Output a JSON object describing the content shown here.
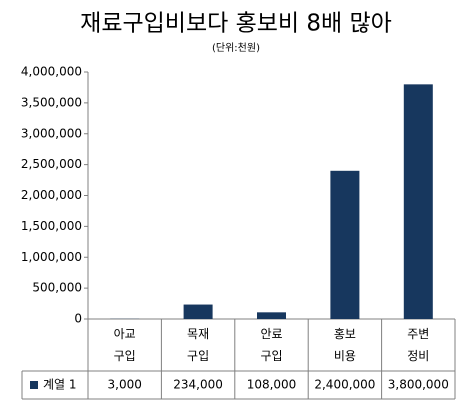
{
  "chart_data": {
    "type": "bar",
    "title": "재료구입비보다 홍보비 8배 많아",
    "subtitle": "(단위:천원)",
    "categories": [
      "아교\n구입",
      "목재\n구입",
      "안료\n구입",
      "홍보\n비용",
      "주변\n정비"
    ],
    "series": [
      {
        "name": "계열 1",
        "color": "#17375e",
        "values": [
          3000,
          234000,
          108000,
          2400000,
          3800000
        ],
        "value_labels": [
          "3,000",
          "234,000",
          "108,000",
          "2,400,000",
          "3,800,000"
        ]
      }
    ],
    "ylim": [
      0,
      4000000
    ],
    "yticks": [
      0,
      {
        "value": 500000,
        "label": "500,000"
      },
      {
        "value": 1000000,
        "label": "1,000,000"
      },
      {
        "value": 1500000,
        "label": "1,500,000"
      },
      {
        "value": 2000000,
        "label": "2,000,000"
      },
      {
        "value": 2500000,
        "label": "2,500,000"
      },
      {
        "value": 3000000,
        "label": "3,000,000"
      },
      {
        "value": 3500000,
        "label": "3,500,000"
      },
      {
        "value": 4000000,
        "label": "4,000,000"
      }
    ],
    "grid": false
  }
}
